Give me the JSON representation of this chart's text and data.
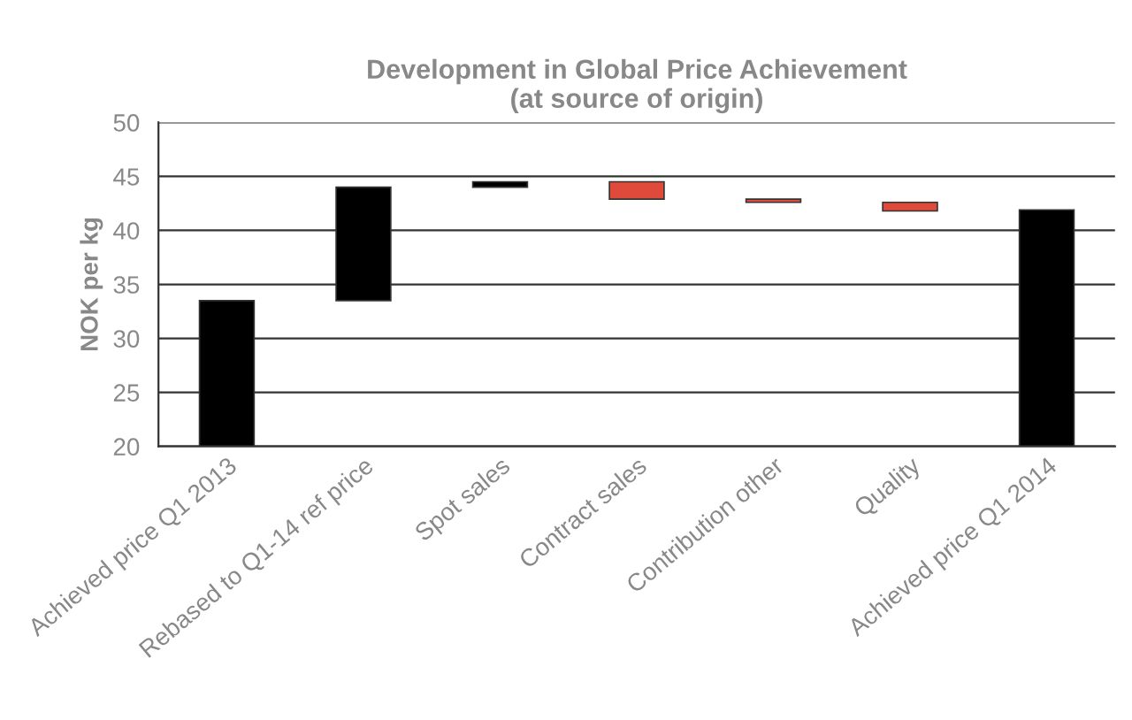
{
  "chart_data": {
    "type": "bar",
    "title": "Development in Global Price Achievement\n(at source of origin)",
    "ylabel": "NOK per kg",
    "categories": [
      "Achieved price Q1 2013",
      "Rebased to Q1-14 ref price",
      "Spot sales",
      "Contract sales",
      "Contribution other",
      "Quality",
      "Achieved price Q1 2014"
    ],
    "values": [
      13.5,
      10.5,
      0.5,
      -1.6,
      -0.3,
      -0.8,
      21.9
    ],
    "base": [
      20,
      33.5,
      44.0,
      44.5,
      42.9,
      42.6,
      20
    ],
    "colors": [
      "#000000",
      "#000000",
      "#000000",
      "#e04a3a",
      "#e04a3a",
      "#e04a3a",
      "#000000"
    ],
    "ylim": [
      20,
      50
    ],
    "yticks": [
      20,
      25,
      30,
      35,
      40,
      45,
      50
    ],
    "grid": "y"
  }
}
